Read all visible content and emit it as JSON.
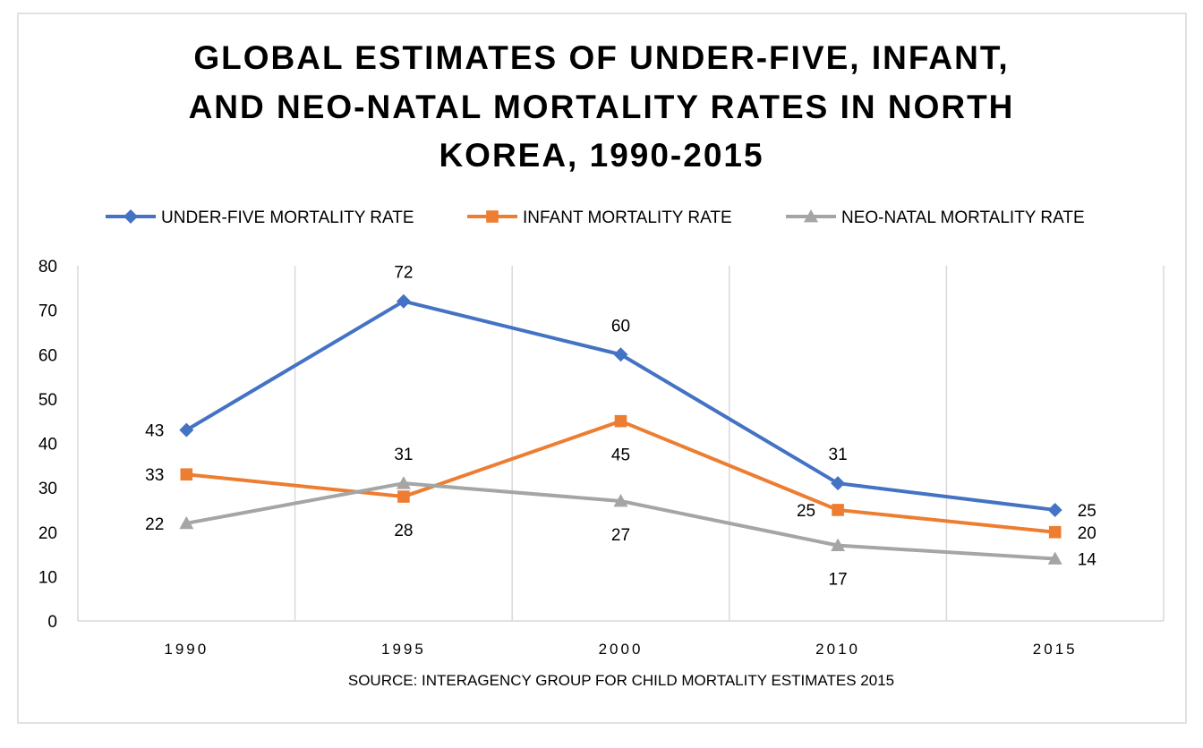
{
  "chart_data": {
    "type": "line",
    "title_lines": [
      "GLOBAL ESTIMATES OF UNDER-FIVE, INFANT,",
      "AND NEO-NATAL MORTALITY RATES IN NORTH",
      "KOREA, 1990-2015"
    ],
    "categories": [
      "1990",
      "1995",
      "2000",
      "2010",
      "2015"
    ],
    "series": [
      {
        "name": "UNDER-FIVE MORTALITY RATE",
        "values": [
          43,
          72,
          60,
          31,
          25
        ],
        "color": "#4472C4",
        "marker": "diamond"
      },
      {
        "name": "INFANT MORTALITY RATE",
        "values": [
          33,
          28,
          45,
          25,
          20
        ],
        "color": "#ED7D31",
        "marker": "square"
      },
      {
        "name": "NEO-NATAL MORTALITY RATE",
        "values": [
          22,
          31,
          27,
          17,
          14
        ],
        "color": "#A5A5A5",
        "marker": "triangle"
      }
    ],
    "ylim": [
      0,
      80
    ],
    "yticks": [
      "0",
      "10",
      "20",
      "30",
      "40",
      "50",
      "60",
      "70",
      "80"
    ],
    "xlabel": "SOURCE: INTERAGENCY GROUP FOR CHILD MORTALITY ESTIMATES 2015",
    "ylabel": "",
    "legend": "top",
    "grid": "vertical"
  }
}
